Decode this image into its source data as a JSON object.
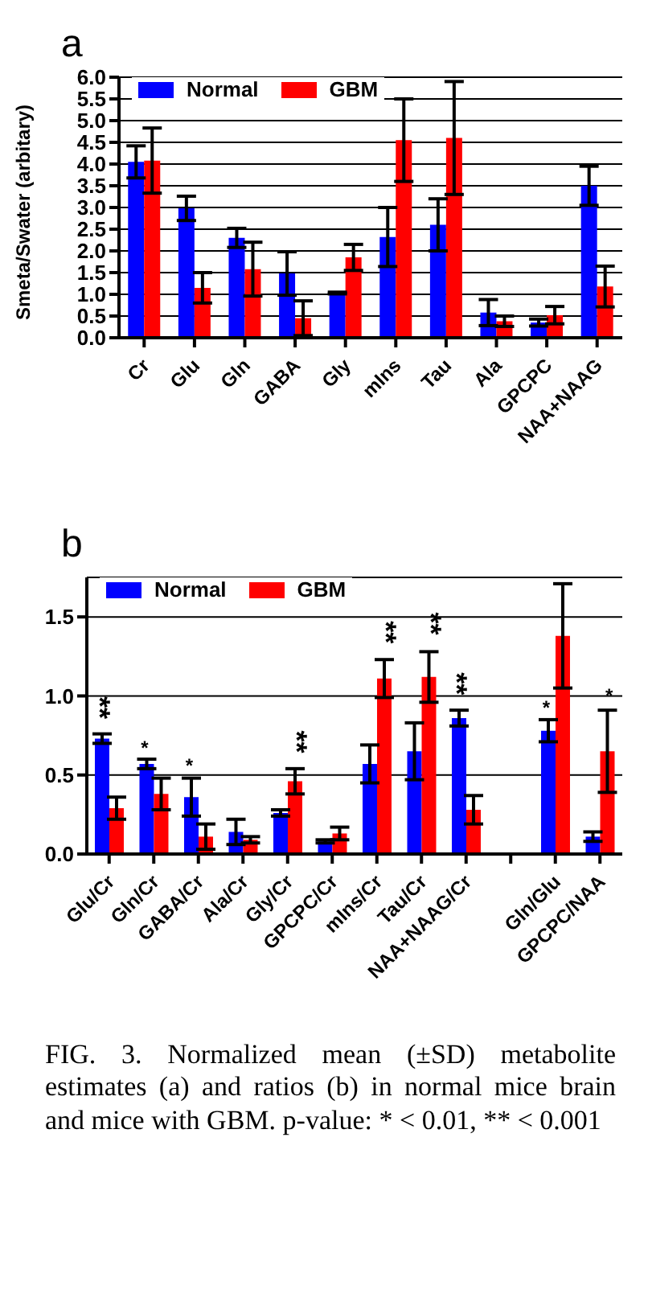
{
  "chart_data": [
    {
      "type": "bar",
      "title": "a",
      "ylabel": "Smeta/Swater (arbitary)",
      "categories": [
        "Cr",
        "Glu",
        "Gln",
        "GABA",
        "Gly",
        "mIns",
        "Tau",
        "Ala",
        "GPCPC",
        "NAA+NAAG"
      ],
      "series": [
        {
          "name": "Normal",
          "color": "#0000ff",
          "values": [
            4.05,
            2.98,
            2.3,
            1.48,
            1.03,
            2.32,
            2.6,
            0.58,
            0.35,
            3.5
          ],
          "errors": [
            0.37,
            0.28,
            0.22,
            0.5,
            0.02,
            0.68,
            0.6,
            0.3,
            0.08,
            0.45
          ]
        },
        {
          "name": "GBM",
          "color": "#ff0000",
          "values": [
            4.08,
            1.15,
            1.58,
            0.45,
            1.85,
            4.55,
            4.6,
            0.38,
            0.52,
            1.18
          ],
          "errors": [
            0.75,
            0.35,
            0.62,
            0.4,
            0.3,
            0.95,
            1.3,
            0.12,
            0.2,
            0.47
          ]
        }
      ],
      "ylim": [
        0,
        6
      ],
      "yticks": [
        {
          "value": 0,
          "label": "0.0"
        },
        {
          "value": 0.5,
          "label": "0.5"
        },
        {
          "value": 1,
          "label": "1.0"
        },
        {
          "value": 1.5,
          "label": "1.5"
        },
        {
          "value": 2,
          "label": "2.0"
        },
        {
          "value": 2.5,
          "label": "2.5"
        },
        {
          "value": 3,
          "label": "3.0"
        },
        {
          "value": 3.5,
          "label": "3.5"
        },
        {
          "value": 4,
          "label": "4.0"
        },
        {
          "value": 4.5,
          "label": "4.5"
        },
        {
          "value": 5,
          "label": "5.0"
        },
        {
          "value": 5.5,
          "label": "5.5"
        },
        {
          "value": 6,
          "label": "6.0"
        }
      ],
      "grid": "y",
      "legend": "top left"
    },
    {
      "type": "bar",
      "title": "b",
      "categories": [
        "Glu/Cr",
        "Gln/Cr",
        "GABA/Cr",
        "Ala/Cr",
        "Gly/Cr",
        "GPCPC/Cr",
        "mIns/Cr",
        "Tau/Cr",
        "NAA+NAAG/Cr",
        null,
        "Gln/Glu",
        "GPCPC/NAA"
      ],
      "series": [
        {
          "name": "Normal",
          "color": "#0000ff",
          "values": [
            0.73,
            0.57,
            0.36,
            0.14,
            0.26,
            0.08,
            0.57,
            0.65,
            0.86,
            null,
            0.78,
            0.11
          ],
          "errors": [
            0.03,
            0.03,
            0.12,
            0.08,
            0.02,
            0.01,
            0.12,
            0.18,
            0.05,
            null,
            0.07,
            0.03
          ]
        },
        {
          "name": "GBM",
          "color": "#ff0000",
          "values": [
            0.29,
            0.38,
            0.11,
            0.09,
            0.46,
            0.13,
            1.11,
            1.12,
            0.28,
            null,
            1.38,
            0.65
          ],
          "errors": [
            0.07,
            0.1,
            0.08,
            0.02,
            0.08,
            0.04,
            0.12,
            0.16,
            0.09,
            null,
            0.33,
            0.26
          ]
        }
      ],
      "ylim": [
        0,
        1.75
      ],
      "yticks": [
        {
          "value": 0,
          "label": "0.0"
        },
        {
          "value": 0.5,
          "label": "0.5"
        },
        {
          "value": 1,
          "label": "1.0"
        },
        {
          "value": 1.5,
          "label": "1.5"
        }
      ],
      "grid": "y",
      "legend": "top left",
      "annotations": [
        {
          "text": "**",
          "x": "Glu/Cr",
          "y": 0.73
        },
        {
          "text": "*",
          "x": "Gln/Cr",
          "y": 0.57
        },
        {
          "text": "*",
          "x": "GABA/Cr",
          "y": 0.36
        },
        {
          "text": "**",
          "x": "Gly/Cr",
          "y": 0.46
        },
        {
          "text": "**",
          "x": "mIns/Cr",
          "y": 1.11
        },
        {
          "text": "**",
          "x": "Tau/Cr",
          "y": 1.12
        },
        {
          "text": "**",
          "x": "NAA+NAAG/Cr",
          "y": 0.86
        },
        {
          "text": "*",
          "x": "Gln/Glu",
          "y": 0.78
        },
        {
          "text": "*",
          "x": "GPCPC/NAA",
          "y": 0.65
        },
        "FIG. 3. Normalized mean (±SD) metabolite estimates (a) and ratios (b) in normal mice brain and mice with GBM. p-value: * < 0.01, ** < 0.001"
      ]
    }
  ]
}
